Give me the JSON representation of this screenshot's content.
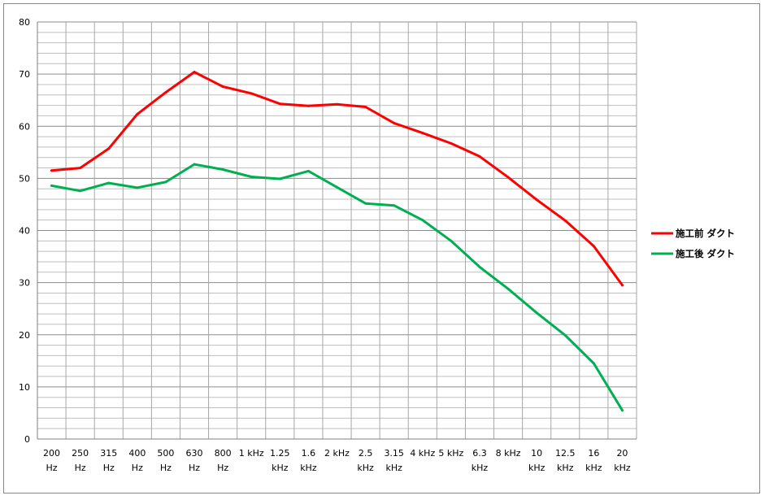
{
  "chart_data": {
    "type": "line",
    "categories": [
      [
        "200",
        "Hz"
      ],
      [
        "250",
        "Hz"
      ],
      [
        "315",
        "Hz"
      ],
      [
        "400",
        "Hz"
      ],
      [
        "500",
        "Hz"
      ],
      [
        "630",
        "Hz"
      ],
      [
        "800",
        "Hz"
      ],
      [
        "1 kHz",
        ""
      ],
      [
        "1.25",
        "kHz"
      ],
      [
        "1.6",
        "kHz"
      ],
      [
        "2 kHz",
        ""
      ],
      [
        "2.5",
        "kHz"
      ],
      [
        "3.15",
        "kHz"
      ],
      [
        "4 kHz",
        ""
      ],
      [
        "5 kHz",
        ""
      ],
      [
        "6.3",
        "kHz"
      ],
      [
        "8 kHz",
        ""
      ],
      [
        "10",
        "kHz"
      ],
      [
        "12.5",
        "kHz"
      ],
      [
        "16",
        "kHz"
      ],
      [
        "20",
        "kHz"
      ]
    ],
    "ylim": [
      0,
      80
    ],
    "yticks": [
      0,
      10,
      20,
      30,
      40,
      50,
      60,
      70,
      80
    ],
    "minor_grid_step": 2,
    "grid": true,
    "legend_position": "right",
    "series": [
      {
        "name": "施工前 ダクト",
        "color": "#ff0000",
        "values": [
          51.5,
          52.0,
          55.7,
          62.3,
          66.5,
          70.4,
          67.6,
          66.3,
          64.3,
          63.9,
          64.2,
          63.7,
          60.6,
          58.7,
          56.7,
          54.2,
          50.2,
          45.9,
          41.9,
          37.0,
          29.5
        ]
      },
      {
        "name": "施工後 ダクト",
        "color": "#00b050",
        "values": [
          48.6,
          47.6,
          49.1,
          48.2,
          49.3,
          52.7,
          51.7,
          50.3,
          49.9,
          51.4,
          48.3,
          45.2,
          44.8,
          42.0,
          38.0,
          33.0,
          28.8,
          24.2,
          19.9,
          14.5,
          5.5
        ]
      }
    ]
  }
}
